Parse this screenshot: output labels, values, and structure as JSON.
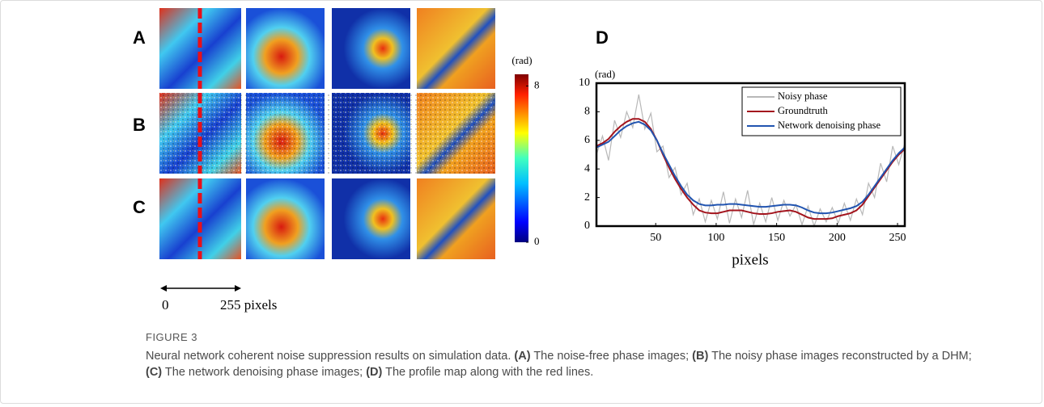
{
  "figure": {
    "panel_labels": [
      "A",
      "B",
      "C"
    ],
    "colorbar": {
      "label": "(rad)",
      "lim": [
        0,
        8.6
      ],
      "ticks": [
        0,
        8
      ]
    },
    "scale_bar": {
      "start": "0",
      "end": "255 pixels"
    }
  },
  "chart_data": {
    "type": "line",
    "title": "D",
    "ylabel": "(rad)",
    "xlabel": "pixels",
    "x": [
      1,
      6,
      11,
      16,
      21,
      26,
      31,
      36,
      41,
      46,
      51,
      56,
      61,
      66,
      71,
      76,
      81,
      86,
      91,
      96,
      101,
      106,
      111,
      116,
      121,
      126,
      131,
      136,
      141,
      146,
      151,
      156,
      161,
      166,
      171,
      176,
      181,
      186,
      191,
      196,
      201,
      206,
      211,
      216,
      221,
      226,
      231,
      236,
      241,
      246,
      251,
      256
    ],
    "xlim": [
      1,
      256
    ],
    "xticks": [
      50,
      100,
      150,
      200,
      250
    ],
    "ylim": [
      0,
      10
    ],
    "yticks": [
      0,
      2,
      4,
      6,
      8,
      10
    ],
    "legend": "upper right",
    "series": [
      {
        "name": "Noisy phase",
        "color": "#b8b8b8",
        "values": [
          5.0,
          6.3,
          4.6,
          7.4,
          6.2,
          8.0,
          6.9,
          9.2,
          6.8,
          7.9,
          5.2,
          5.6,
          3.4,
          4.1,
          2.2,
          3.0,
          0.8,
          1.9,
          0.3,
          1.8,
          0.5,
          2.4,
          0.2,
          1.9,
          0.6,
          2.5,
          0.1,
          1.6,
          0.3,
          2.0,
          0.4,
          1.8,
          0.7,
          1.5,
          0.1,
          1.4,
          0.0,
          1.2,
          0.3,
          1.3,
          0.2,
          1.6,
          0.4,
          1.9,
          0.8,
          3.0,
          2.0,
          4.4,
          3.1,
          5.6,
          4.3,
          5.8
        ]
      },
      {
        "name": "Groundtruth",
        "color": "#a3141d",
        "values": [
          5.6,
          5.8,
          6.1,
          6.6,
          7.0,
          7.3,
          7.5,
          7.5,
          7.3,
          6.8,
          6.0,
          5.0,
          4.1,
          3.3,
          2.6,
          2.0,
          1.5,
          1.1,
          0.95,
          0.9,
          0.9,
          1.0,
          1.1,
          1.1,
          1.1,
          1.0,
          0.9,
          0.85,
          0.85,
          0.9,
          1.0,
          1.05,
          1.1,
          1.0,
          0.8,
          0.6,
          0.5,
          0.5,
          0.5,
          0.55,
          0.7,
          0.8,
          0.9,
          1.1,
          1.5,
          2.1,
          2.7,
          3.3,
          3.9,
          4.5,
          5.0,
          5.4
        ]
      },
      {
        "name": "Network denoising phase",
        "color": "#2154b0",
        "values": [
          5.5,
          5.7,
          5.9,
          6.3,
          6.7,
          7.0,
          7.2,
          7.3,
          7.1,
          6.7,
          6.0,
          5.1,
          4.3,
          3.5,
          2.8,
          2.2,
          1.8,
          1.55,
          1.45,
          1.45,
          1.5,
          1.5,
          1.55,
          1.55,
          1.5,
          1.45,
          1.4,
          1.35,
          1.35,
          1.4,
          1.45,
          1.5,
          1.5,
          1.45,
          1.3,
          1.1,
          0.95,
          0.9,
          0.9,
          0.95,
          1.05,
          1.15,
          1.25,
          1.4,
          1.7,
          2.2,
          2.8,
          3.4,
          4.0,
          4.6,
          5.1,
          5.5
        ]
      }
    ]
  },
  "caption": {
    "label": "FIGURE 3",
    "intro": "Neural network coherent noise suppression results on simulation data.",
    "items": [
      {
        "label": "(A)",
        "text": "The noise-free phase images;"
      },
      {
        "label": "(B)",
        "text": "The noisy phase images reconstructed by a DHM;"
      },
      {
        "label": "(C)",
        "text": "The network denoising phase images;"
      },
      {
        "label": "(D)",
        "text": "The profile map along with the red lines."
      }
    ]
  }
}
